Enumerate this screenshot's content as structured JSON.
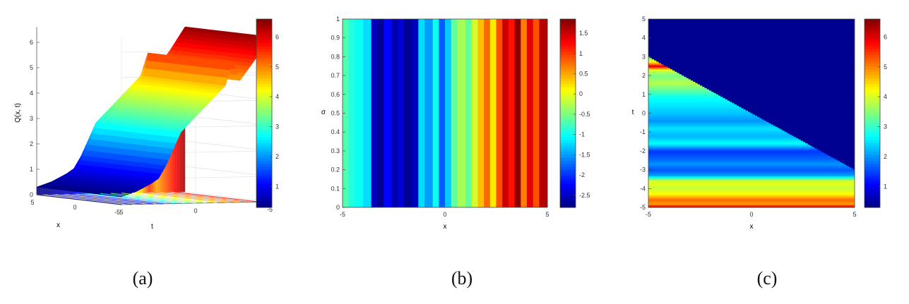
{
  "panels": {
    "a": {
      "caption": "(a)",
      "zlabel": "Q(x, t)",
      "xlabel": "x",
      "tlabel": "t",
      "z_ticks": [
        "0",
        "1",
        "2",
        "3",
        "4",
        "5",
        "6"
      ],
      "x_ticks": [
        "5",
        "0",
        "-5"
      ],
      "t_ticks": [
        "5",
        "0",
        "-5"
      ],
      "colorbar_ticks": [
        "1",
        "2",
        "3",
        "4",
        "5",
        "6"
      ]
    },
    "b": {
      "caption": "(b)",
      "xlabel": "x",
      "ylabel": "σ",
      "x_ticks": [
        "-5",
        "0",
        "5"
      ],
      "y_ticks": [
        "0",
        "0.1",
        "0.2",
        "0.3",
        "0.4",
        "0.5",
        "0.6",
        "0.7",
        "0.8",
        "0.9",
        "1"
      ],
      "colorbar_ticks": [
        "1.5",
        "1",
        "0.5",
        "0",
        "-0.5",
        "-1",
        "-1.5",
        "-2",
        "-2.5"
      ]
    },
    "c": {
      "caption": "(c)",
      "xlabel": "x",
      "ylabel": "t",
      "x_ticks": [
        "-5",
        "0",
        "5"
      ],
      "y_ticks": [
        "5",
        "4",
        "3",
        "2",
        "1",
        "0",
        "-1",
        "-2",
        "-3",
        "-4",
        "-5"
      ],
      "colorbar_ticks": [
        "1",
        "2",
        "3",
        "4",
        "5",
        "6"
      ]
    }
  },
  "chart_data": [
    {
      "type": "surface",
      "zlabel": "Q(x, t)",
      "xlabel": "x",
      "ylabel": "t",
      "xlim": [
        -5,
        5
      ],
      "ylim": [
        -5,
        5
      ],
      "zlim": [
        0,
        6.6
      ],
      "colormap": "jet",
      "clim": [
        0.3,
        6.6
      ],
      "t_profile": {
        "t": [
          -5,
          -4,
          -3,
          -2.5,
          -2,
          -1,
          0,
          1,
          2,
          2.5,
          3,
          4,
          5
        ],
        "Q": [
          0.3,
          0.5,
          0.8,
          1.0,
          1.5,
          2.8,
          3.4,
          4.0,
          4.6,
          5.5,
          4.8,
          5.6,
          6.5
        ]
      }
    },
    {
      "type": "heatmap",
      "xlabel": "x",
      "ylabel": "σ",
      "xlim": [
        -5,
        5
      ],
      "ylim": [
        0,
        1
      ],
      "colormap": "jet",
      "clim": [
        -2.8,
        1.85
      ],
      "note": "value constant in σ, varies only in x",
      "x": [
        -5,
        -4.7,
        -4.4,
        -4.0,
        -3.6,
        -3.3,
        -3.0,
        -2.6,
        -2.3,
        -2.0,
        -1.6,
        -1.3,
        -1.0,
        -0.6,
        -0.3,
        0,
        0.3,
        0.6,
        1.0,
        1.3,
        1.6,
        1.9,
        2.2,
        2.5,
        2.8,
        3.1,
        3.4,
        3.7,
        4.0,
        4.3,
        4.6,
        5
      ],
      "values": [
        -0.7,
        -0.9,
        -1.0,
        -1.2,
        -2.5,
        -2.7,
        -2.2,
        -2.6,
        -2.4,
        -2.7,
        -2.5,
        -1.2,
        -1.5,
        -1.0,
        -1.8,
        -1.3,
        -0.6,
        -0.3,
        -0.6,
        -0.1,
        0.4,
        0.8,
        0.2,
        0.9,
        1.5,
        1.2,
        1.8,
        0.7,
        1.4,
        0.9,
        1.6,
        0.2
      ]
    },
    {
      "type": "heatmap",
      "xlabel": "x",
      "ylabel": "t",
      "xlim": [
        -5,
        5
      ],
      "ylim": [
        -5,
        5
      ],
      "colormap": "jet",
      "clim": [
        0.3,
        6.6
      ],
      "boundary": {
        "x": [
          -5,
          5
        ],
        "t": [
          3,
          -3
        ]
      },
      "upper_region_value": 0.4,
      "lower_profile": {
        "t": [
          -5,
          -4.8,
          -4.6,
          -4.3,
          -4.0,
          -3.6,
          -3.3,
          -3.0,
          -2.7,
          -2.4,
          -2.0,
          -1.6,
          -1.2,
          -0.8,
          -0.4,
          0,
          0.4,
          0.8,
          1.2,
          1.6,
          2.0,
          2.3,
          2.5,
          2.7,
          3.0
        ],
        "values": [
          6.2,
          4.8,
          5.2,
          4.3,
          3.9,
          4.1,
          2.1,
          1.6,
          2.0,
          1.7,
          1.4,
          2.7,
          2.2,
          2.5,
          2.0,
          2.3,
          2.5,
          2.7,
          3.2,
          3.8,
          3.4,
          4.0,
          6.0,
          4.5,
          3.0
        ]
      }
    }
  ]
}
